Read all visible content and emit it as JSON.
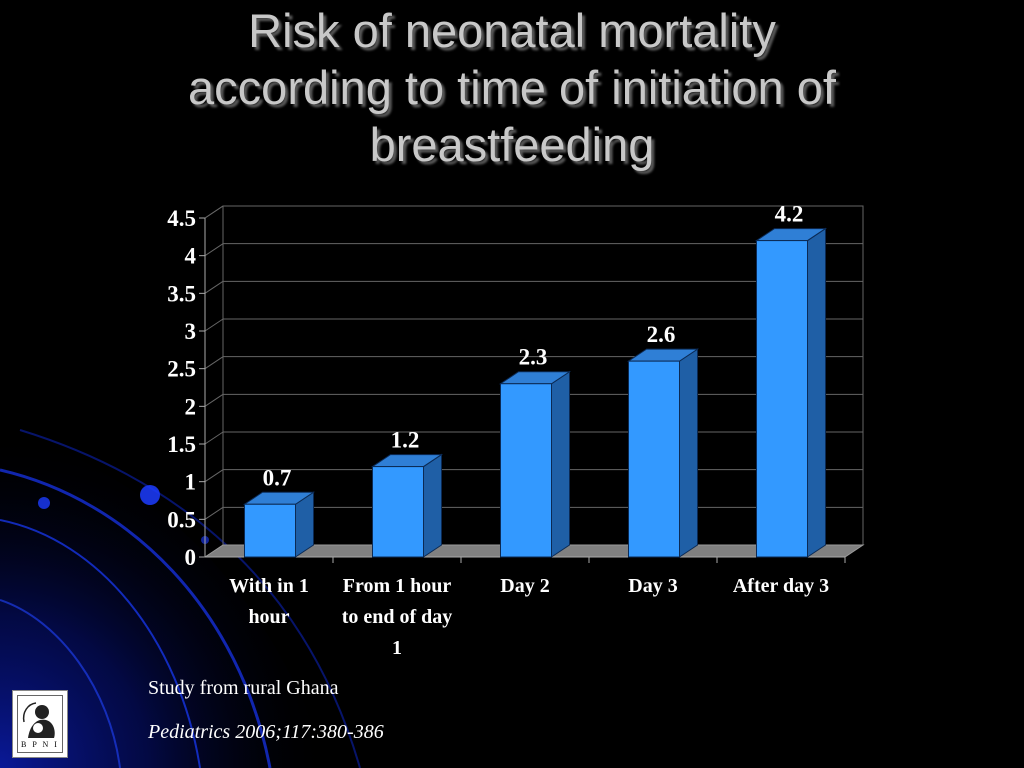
{
  "title": {
    "line1": "Risk of neonatal mortality",
    "line2": "according to time of initiation of",
    "line3": "breastfeeding"
  },
  "colors": {
    "background": "#000000",
    "bar_front": "#3399ff",
    "bar_side": "#1f5fa6",
    "bar_top": "#2f7fd6",
    "floor": "#808080",
    "text": "#ffffff",
    "title": "#c8c8c8"
  },
  "chart_data": {
    "type": "bar",
    "style": "3d",
    "categories": [
      [
        "With in 1",
        "hour"
      ],
      [
        "From 1 hour",
        "to end of day",
        "1"
      ],
      [
        "Day 2"
      ],
      [
        "Day 3"
      ],
      [
        "After day 3"
      ]
    ],
    "values": [
      0.7,
      1.2,
      2.3,
      2.6,
      4.2
    ],
    "data_labels": [
      "0.7",
      "1.2",
      "2.3",
      "2.6",
      "4.2"
    ],
    "ylim": [
      0,
      4.5
    ],
    "yticks": [
      "0",
      "0.5",
      "1",
      "1.5",
      "2",
      "2.5",
      "3",
      "3.5",
      "4",
      "4.5"
    ],
    "grid": true,
    "legend": "none"
  },
  "notes": {
    "study": "Study from rural Ghana",
    "citation": "Pediatrics 2006;117:380-386"
  },
  "logo": {
    "text": "B P N I",
    "icon": "mother-child-logo-icon"
  }
}
